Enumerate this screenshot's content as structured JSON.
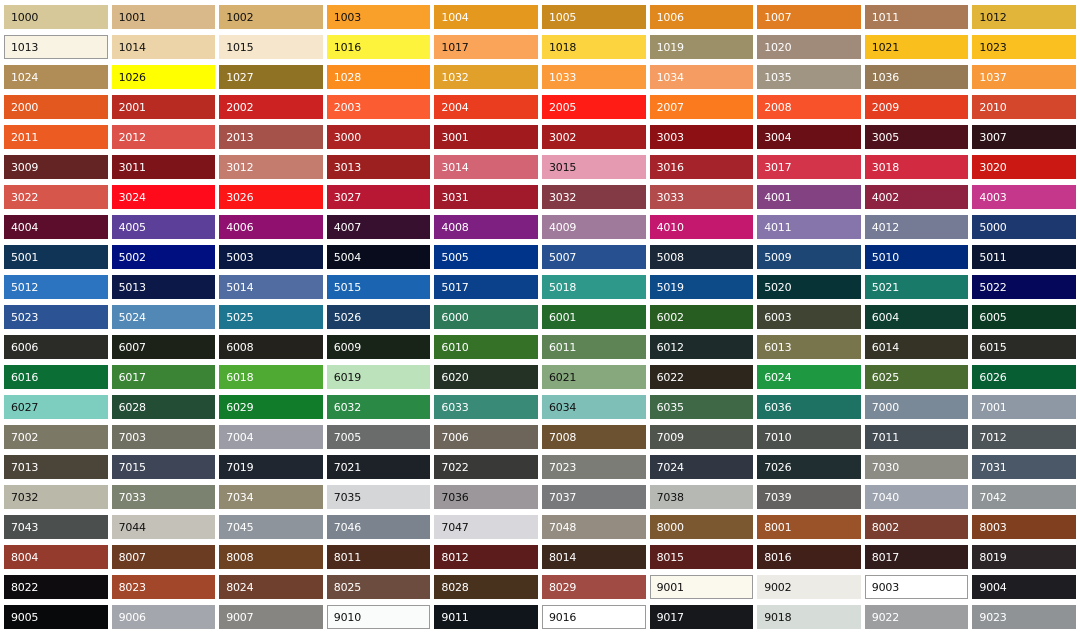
{
  "swatches": [
    [
      {
        "code": "1000",
        "bg": "#d6c898",
        "fg": "#111111"
      },
      {
        "code": "1001",
        "bg": "#d9b98a",
        "fg": "#111111"
      },
      {
        "code": "1002",
        "bg": "#d6b06e",
        "fg": "#111111"
      },
      {
        "code": "1003",
        "bg": "#f9a02a",
        "fg": "#111111"
      },
      {
        "code": "1004",
        "bg": "#e4981e",
        "fg": "#ffffff"
      },
      {
        "code": "1005",
        "bg": "#c8891e",
        "fg": "#ffffff"
      },
      {
        "code": "1006",
        "bg": "#e0871e",
        "fg": "#ffffff"
      },
      {
        "code": "1007",
        "bg": "#e07d22",
        "fg": "#ffffff"
      },
      {
        "code": "1011",
        "bg": "#a97a55",
        "fg": "#ffffff"
      },
      {
        "code": "1012",
        "bg": "#e1b43a",
        "fg": "#111111"
      }
    ],
    [
      {
        "code": "1013",
        "bg": "#f9f3e3",
        "fg": "#111111",
        "outlined": true
      },
      {
        "code": "1014",
        "bg": "#ecd4a8",
        "fg": "#111111"
      },
      {
        "code": "1015",
        "bg": "#f5e6cc",
        "fg": "#111111"
      },
      {
        "code": "1016",
        "bg": "#fdf33c",
        "fg": "#111111"
      },
      {
        "code": "1017",
        "bg": "#f9a458",
        "fg": "#111111"
      },
      {
        "code": "1018",
        "bg": "#fbd440",
        "fg": "#111111"
      },
      {
        "code": "1019",
        "bg": "#9b9068",
        "fg": "#ffffff"
      },
      {
        "code": "1020",
        "bg": "#a08a7a",
        "fg": "#ffffff"
      },
      {
        "code": "1021",
        "bg": "#f9bf1c",
        "fg": "#111111"
      },
      {
        "code": "1023",
        "bg": "#f9c020",
        "fg": "#111111"
      }
    ],
    [
      {
        "code": "1024",
        "bg": "#b08c56",
        "fg": "#ffffff"
      },
      {
        "code": "1026",
        "bg": "#ffff00",
        "fg": "#111111"
      },
      {
        "code": "1027",
        "bg": "#8f7224",
        "fg": "#ffffff"
      },
      {
        "code": "1028",
        "bg": "#fb8c1e",
        "fg": "#ffffff"
      },
      {
        "code": "1032",
        "bg": "#e0a02a",
        "fg": "#ffffff"
      },
      {
        "code": "1033",
        "bg": "#fb9a3a",
        "fg": "#ffffff"
      },
      {
        "code": "1034",
        "bg": "#f59c62",
        "fg": "#ffffff"
      },
      {
        "code": "1035",
        "bg": "#a09483",
        "fg": "#ffffff"
      },
      {
        "code": "1036",
        "bg": "#957a55",
        "fg": "#ffffff"
      },
      {
        "code": "1037",
        "bg": "#f7993a",
        "fg": "#ffffff"
      }
    ],
    [
      {
        "code": "2000",
        "bg": "#e3581e",
        "fg": "#ffffff"
      },
      {
        "code": "2001",
        "bg": "#b72b22",
        "fg": "#ffffff"
      },
      {
        "code": "2002",
        "bg": "#cc2222",
        "fg": "#ffffff"
      },
      {
        "code": "2003",
        "bg": "#fc5c32",
        "fg": "#ffffff"
      },
      {
        "code": "2004",
        "bg": "#ea3c1e",
        "fg": "#ffffff"
      },
      {
        "code": "2005",
        "bg": "#fe1c14",
        "fg": "#ffffff"
      },
      {
        "code": "2007",
        "bg": "#fc7a1e",
        "fg": "#ffffff"
      },
      {
        "code": "2008",
        "bg": "#f8522a",
        "fg": "#ffffff"
      },
      {
        "code": "2009",
        "bg": "#e43d1f",
        "fg": "#ffffff"
      },
      {
        "code": "2010",
        "bg": "#d4472c",
        "fg": "#ffffff"
      }
    ],
    [
      {
        "code": "2011",
        "bg": "#eb5b22",
        "fg": "#ffffff"
      },
      {
        "code": "2012",
        "bg": "#dc524a",
        "fg": "#ffffff"
      },
      {
        "code": "2013",
        "bg": "#a5524a",
        "fg": "#ffffff"
      },
      {
        "code": "3000",
        "bg": "#ad2222",
        "fg": "#ffffff"
      },
      {
        "code": "3001",
        "bg": "#a01a1e",
        "fg": "#ffffff"
      },
      {
        "code": "3002",
        "bg": "#a51c1f",
        "fg": "#ffffff"
      },
      {
        "code": "3003",
        "bg": "#8c1014",
        "fg": "#ffffff"
      },
      {
        "code": "3004",
        "bg": "#6a0f15",
        "fg": "#ffffff"
      },
      {
        "code": "3005",
        "bg": "#4f121c",
        "fg": "#ffffff"
      },
      {
        "code": "3007",
        "bg": "#2e1419",
        "fg": "#ffffff"
      }
    ],
    [
      {
        "code": "3009",
        "bg": "#642424",
        "fg": "#ffffff"
      },
      {
        "code": "3011",
        "bg": "#7c141a",
        "fg": "#ffffff"
      },
      {
        "code": "3012",
        "bg": "#c47c6e",
        "fg": "#ffffff"
      },
      {
        "code": "3013",
        "bg": "#9c2020",
        "fg": "#ffffff"
      },
      {
        "code": "3014",
        "bg": "#d26474",
        "fg": "#ffffff"
      },
      {
        "code": "3015",
        "bg": "#e59ab2",
        "fg": "#111111"
      },
      {
        "code": "3016",
        "bg": "#a5232a",
        "fg": "#ffffff"
      },
      {
        "code": "3017",
        "bg": "#d4344a",
        "fg": "#ffffff"
      },
      {
        "code": "3018",
        "bg": "#d22a40",
        "fg": "#ffffff"
      },
      {
        "code": "3020",
        "bg": "#cc1812",
        "fg": "#ffffff"
      }
    ],
    [
      {
        "code": "3022",
        "bg": "#d6564c",
        "fg": "#ffffff"
      },
      {
        "code": "3024",
        "bg": "#fe0a1a",
        "fg": "#ffffff"
      },
      {
        "code": "3026",
        "bg": "#fd1616",
        "fg": "#ffffff"
      },
      {
        "code": "3027",
        "bg": "#b81833",
        "fg": "#ffffff"
      },
      {
        "code": "3031",
        "bg": "#a11a2b",
        "fg": "#ffffff"
      },
      {
        "code": "3032",
        "bg": "#843a44",
        "fg": "#ffffff"
      },
      {
        "code": "3033",
        "bg": "#b24c4c",
        "fg": "#ffffff"
      },
      {
        "code": "4001",
        "bg": "#834383",
        "fg": "#ffffff"
      },
      {
        "code": "4002",
        "bg": "#8d2341",
        "fg": "#ffffff"
      },
      {
        "code": "4003",
        "bg": "#c4378a",
        "fg": "#ffffff"
      }
    ],
    [
      {
        "code": "4004",
        "bg": "#5c0d2c",
        "fg": "#ffffff"
      },
      {
        "code": "4005",
        "bg": "#5c3f99",
        "fg": "#ffffff"
      },
      {
        "code": "4006",
        "bg": "#8f106e",
        "fg": "#ffffff"
      },
      {
        "code": "4007",
        "bg": "#36102e",
        "fg": "#ffffff"
      },
      {
        "code": "4008",
        "bg": "#7d2082",
        "fg": "#ffffff"
      },
      {
        "code": "4009",
        "bg": "#a07a9a",
        "fg": "#ffffff"
      },
      {
        "code": "4010",
        "bg": "#c3186e",
        "fg": "#ffffff"
      },
      {
        "code": "4011",
        "bg": "#8575aa",
        "fg": "#ffffff"
      },
      {
        "code": "4012",
        "bg": "#757b95",
        "fg": "#ffffff"
      },
      {
        "code": "5000",
        "bg": "#1d376f",
        "fg": "#ffffff"
      }
    ],
    [
      {
        "code": "5001",
        "bg": "#103456",
        "fg": "#ffffff"
      },
      {
        "code": "5002",
        "bg": "#000f80",
        "fg": "#ffffff"
      },
      {
        "code": "5003",
        "bg": "#091842",
        "fg": "#ffffff"
      },
      {
        "code": "5004",
        "bg": "#080c1c",
        "fg": "#ffffff"
      },
      {
        "code": "5005",
        "bg": "#00338a",
        "fg": "#ffffff"
      },
      {
        "code": "5007",
        "bg": "#265090",
        "fg": "#ffffff"
      },
      {
        "code": "5008",
        "bg": "#1a2838",
        "fg": "#ffffff"
      },
      {
        "code": "5009",
        "bg": "#1d4675",
        "fg": "#ffffff"
      },
      {
        "code": "5010",
        "bg": "#002a7c",
        "fg": "#ffffff"
      },
      {
        "code": "5011",
        "bg": "#0a1632",
        "fg": "#ffffff"
      }
    ],
    [
      {
        "code": "5012",
        "bg": "#2d74c0",
        "fg": "#ffffff"
      },
      {
        "code": "5013",
        "bg": "#0c1848",
        "fg": "#ffffff"
      },
      {
        "code": "5014",
        "bg": "#506ca0",
        "fg": "#ffffff"
      },
      {
        "code": "5015",
        "bg": "#1a64b2",
        "fg": "#ffffff"
      },
      {
        "code": "5017",
        "bg": "#0b408a",
        "fg": "#ffffff"
      },
      {
        "code": "5018",
        "bg": "#2e988a",
        "fg": "#ffffff"
      },
      {
        "code": "5019",
        "bg": "#0d4a88",
        "fg": "#ffffff"
      },
      {
        "code": "5020",
        "bg": "#073336",
        "fg": "#ffffff"
      },
      {
        "code": "5021",
        "bg": "#1a7a6a",
        "fg": "#ffffff"
      },
      {
        "code": "5022",
        "bg": "#05085a",
        "fg": "#ffffff"
      }
    ],
    [
      {
        "code": "5023",
        "bg": "#2c5394",
        "fg": "#ffffff"
      },
      {
        "code": "5024",
        "bg": "#5288b6",
        "fg": "#ffffff"
      },
      {
        "code": "5025",
        "bg": "#1e7590",
        "fg": "#ffffff"
      },
      {
        "code": "5026",
        "bg": "#1a3e66",
        "fg": "#ffffff"
      },
      {
        "code": "6000",
        "bg": "#2e7a58",
        "fg": "#ffffff"
      },
      {
        "code": "6001",
        "bg": "#246a2a",
        "fg": "#ffffff"
      },
      {
        "code": "6002",
        "bg": "#275d20",
        "fg": "#ffffff"
      },
      {
        "code": "6003",
        "bg": "#404432",
        "fg": "#ffffff"
      },
      {
        "code": "6004",
        "bg": "#0d3e2f",
        "fg": "#ffffff"
      },
      {
        "code": "6005",
        "bg": "#0b3b22",
        "fg": "#ffffff"
      }
    ],
    [
      {
        "code": "6006",
        "bg": "#2b2b27",
        "fg": "#ffffff"
      },
      {
        "code": "6007",
        "bg": "#1d2218",
        "fg": "#ffffff"
      },
      {
        "code": "6008",
        "bg": "#24221c",
        "fg": "#ffffff"
      },
      {
        "code": "6009",
        "bg": "#182418",
        "fg": "#ffffff"
      },
      {
        "code": "6010",
        "bg": "#357228",
        "fg": "#ffffff"
      },
      {
        "code": "6011",
        "bg": "#5e8456",
        "fg": "#ffffff"
      },
      {
        "code": "6012",
        "bg": "#1d2c2a",
        "fg": "#ffffff"
      },
      {
        "code": "6013",
        "bg": "#78744c",
        "fg": "#ffffff"
      },
      {
        "code": "6014",
        "bg": "#353226",
        "fg": "#ffffff"
      },
      {
        "code": "6015",
        "bg": "#2a2b27",
        "fg": "#ffffff"
      }
    ],
    [
      {
        "code": "6016",
        "bg": "#0a6e35",
        "fg": "#ffffff"
      },
      {
        "code": "6017",
        "bg": "#3c8435",
        "fg": "#ffffff"
      },
      {
        "code": "6018",
        "bg": "#4eaa32",
        "fg": "#ffffff"
      },
      {
        "code": "6019",
        "bg": "#bce2bc",
        "fg": "#111111"
      },
      {
        "code": "6020",
        "bg": "#243226",
        "fg": "#ffffff"
      },
      {
        "code": "6021",
        "bg": "#86a87c",
        "fg": "#111111"
      },
      {
        "code": "6022",
        "bg": "#2c261c",
        "fg": "#ffffff"
      },
      {
        "code": "6024",
        "bg": "#1f9842",
        "fg": "#ffffff"
      },
      {
        "code": "6025",
        "bg": "#4b6c30",
        "fg": "#ffffff"
      },
      {
        "code": "6026",
        "bg": "#075e33",
        "fg": "#ffffff"
      }
    ],
    [
      {
        "code": "6027",
        "bg": "#7ecec0",
        "fg": "#111111"
      },
      {
        "code": "6028",
        "bg": "#234d35",
        "fg": "#ffffff"
      },
      {
        "code": "6029",
        "bg": "#117d2a",
        "fg": "#ffffff"
      },
      {
        "code": "6032",
        "bg": "#2a8a45",
        "fg": "#ffffff"
      },
      {
        "code": "6033",
        "bg": "#3a8a78",
        "fg": "#ffffff"
      },
      {
        "code": "6034",
        "bg": "#7ec0b8",
        "fg": "#111111"
      },
      {
        "code": "6035",
        "bg": "#3f6846",
        "fg": "#ffffff"
      },
      {
        "code": "6036",
        "bg": "#1e7264",
        "fg": "#ffffff"
      },
      {
        "code": "7000",
        "bg": "#7a8998",
        "fg": "#ffffff"
      },
      {
        "code": "7001",
        "bg": "#8d98a4",
        "fg": "#ffffff"
      }
    ],
    [
      {
        "code": "7002",
        "bg": "#7c7866",
        "fg": "#ffffff"
      },
      {
        "code": "7003",
        "bg": "#707062",
        "fg": "#ffffff"
      },
      {
        "code": "7004",
        "bg": "#9b9ca6",
        "fg": "#ffffff"
      },
      {
        "code": "7005",
        "bg": "#696c6b",
        "fg": "#ffffff"
      },
      {
        "code": "7006",
        "bg": "#6e655a",
        "fg": "#ffffff"
      },
      {
        "code": "7008",
        "bg": "#6c5230",
        "fg": "#ffffff"
      },
      {
        "code": "7009",
        "bg": "#4f544c",
        "fg": "#ffffff"
      },
      {
        "code": "7010",
        "bg": "#4d514e",
        "fg": "#ffffff"
      },
      {
        "code": "7011",
        "bg": "#434b53",
        "fg": "#ffffff"
      },
      {
        "code": "7012",
        "bg": "#4e5558",
        "fg": "#ffffff"
      }
    ],
    [
      {
        "code": "7013",
        "bg": "#4a4538",
        "fg": "#ffffff"
      },
      {
        "code": "7015",
        "bg": "#3e4556",
        "fg": "#ffffff"
      },
      {
        "code": "7019",
        "bg": "#1f2630",
        "fg": "#ffffff"
      },
      {
        "code": "7021",
        "bg": "#1d2228",
        "fg": "#ffffff"
      },
      {
        "code": "7022",
        "bg": "#393938",
        "fg": "#ffffff"
      },
      {
        "code": "7023",
        "bg": "#7b7c76",
        "fg": "#ffffff"
      },
      {
        "code": "7024",
        "bg": "#303743",
        "fg": "#ffffff"
      },
      {
        "code": "7026",
        "bg": "#202d31",
        "fg": "#ffffff"
      },
      {
        "code": "7030",
        "bg": "#8d8c84",
        "fg": "#ffffff"
      },
      {
        "code": "7031",
        "bg": "#4b5868",
        "fg": "#ffffff"
      }
    ],
    [
      {
        "code": "7032",
        "bg": "#bab8a8",
        "fg": "#111111"
      },
      {
        "code": "7033",
        "bg": "#7c8270",
        "fg": "#ffffff"
      },
      {
        "code": "7034",
        "bg": "#928a70",
        "fg": "#ffffff"
      },
      {
        "code": "7035",
        "bg": "#d4d6d8",
        "fg": "#111111"
      },
      {
        "code": "7036",
        "bg": "#9b979a",
        "fg": "#111111"
      },
      {
        "code": "7037",
        "bg": "#78797b",
        "fg": "#ffffff"
      },
      {
        "code": "7038",
        "bg": "#b6b8b4",
        "fg": "#111111"
      },
      {
        "code": "7039",
        "bg": "#646260",
        "fg": "#ffffff"
      },
      {
        "code": "7040",
        "bg": "#9ca2ae",
        "fg": "#ffffff"
      },
      {
        "code": "7042",
        "bg": "#8e9395",
        "fg": "#ffffff"
      }
    ],
    [
      {
        "code": "7043",
        "bg": "#4b4f4e",
        "fg": "#ffffff"
      },
      {
        "code": "7044",
        "bg": "#c4c2b8",
        "fg": "#111111"
      },
      {
        "code": "7045",
        "bg": "#8e949c",
        "fg": "#ffffff"
      },
      {
        "code": "7046",
        "bg": "#7a838e",
        "fg": "#ffffff"
      },
      {
        "code": "7047",
        "bg": "#d8d8dc",
        "fg": "#111111"
      },
      {
        "code": "7048",
        "bg": "#948c80",
        "fg": "#ffffff"
      },
      {
        "code": "8000",
        "bg": "#7c5830",
        "fg": "#ffffff"
      },
      {
        "code": "8001",
        "bg": "#9a5228",
        "fg": "#ffffff"
      },
      {
        "code": "8002",
        "bg": "#7a3e30",
        "fg": "#ffffff"
      },
      {
        "code": "8003",
        "bg": "#804020",
        "fg": "#ffffff"
      }
    ],
    [
      {
        "code": "8004",
        "bg": "#953b2e",
        "fg": "#ffffff"
      },
      {
        "code": "8007",
        "bg": "#6c3c22",
        "fg": "#ffffff"
      },
      {
        "code": "8008",
        "bg": "#6c4222",
        "fg": "#ffffff"
      },
      {
        "code": "8011",
        "bg": "#4c2a1c",
        "fg": "#ffffff"
      },
      {
        "code": "8012",
        "bg": "#5c1c1c",
        "fg": "#ffffff"
      },
      {
        "code": "8014",
        "bg": "#3c281c",
        "fg": "#ffffff"
      },
      {
        "code": "8015",
        "bg": "#5a1e1c",
        "fg": "#ffffff"
      },
      {
        "code": "8016",
        "bg": "#42201a",
        "fg": "#ffffff"
      },
      {
        "code": "8017",
        "bg": "#321c1c",
        "fg": "#ffffff"
      },
      {
        "code": "8019",
        "bg": "#2c2628",
        "fg": "#ffffff"
      }
    ],
    [
      {
        "code": "8022",
        "bg": "#0e0c0e",
        "fg": "#ffffff"
      },
      {
        "code": "8023",
        "bg": "#a2472a",
        "fg": "#ffffff"
      },
      {
        "code": "8024",
        "bg": "#70402e",
        "fg": "#ffffff"
      },
      {
        "code": "8025",
        "bg": "#6c4c3e",
        "fg": "#ffffff"
      },
      {
        "code": "8028",
        "bg": "#48321e",
        "fg": "#ffffff"
      },
      {
        "code": "8029",
        "bg": "#a04c44",
        "fg": "#ffffff"
      },
      {
        "code": "9001",
        "bg": "#fbf8ee",
        "fg": "#111111",
        "outlined": true
      },
      {
        "code": "9002",
        "bg": "#ecebe6",
        "fg": "#111111"
      },
      {
        "code": "9003",
        "bg": "#ffffff",
        "fg": "#111111",
        "outlined": true
      },
      {
        "code": "9004",
        "bg": "#1e1e22",
        "fg": "#ffffff"
      }
    ],
    [
      {
        "code": "9005",
        "bg": "#08090b",
        "fg": "#ffffff"
      },
      {
        "code": "9006",
        "bg": "#a3a6ac",
        "fg": "#ffffff"
      },
      {
        "code": "9007",
        "bg": "#878582",
        "fg": "#ffffff"
      },
      {
        "code": "9010",
        "bg": "#fafcfc",
        "fg": "#111111",
        "outlined": true
      },
      {
        "code": "9011",
        "bg": "#10151c",
        "fg": "#ffffff"
      },
      {
        "code": "9016",
        "bg": "#ffffff",
        "fg": "#111111",
        "outlined": true
      },
      {
        "code": "9017",
        "bg": "#16181c",
        "fg": "#ffffff"
      },
      {
        "code": "9018",
        "bg": "#d6dcd8",
        "fg": "#111111"
      },
      {
        "code": "9022",
        "bg": "#9c9ea0",
        "fg": "#ffffff"
      },
      {
        "code": "9023",
        "bg": "#8f9396",
        "fg": "#ffffff"
      }
    ]
  ]
}
